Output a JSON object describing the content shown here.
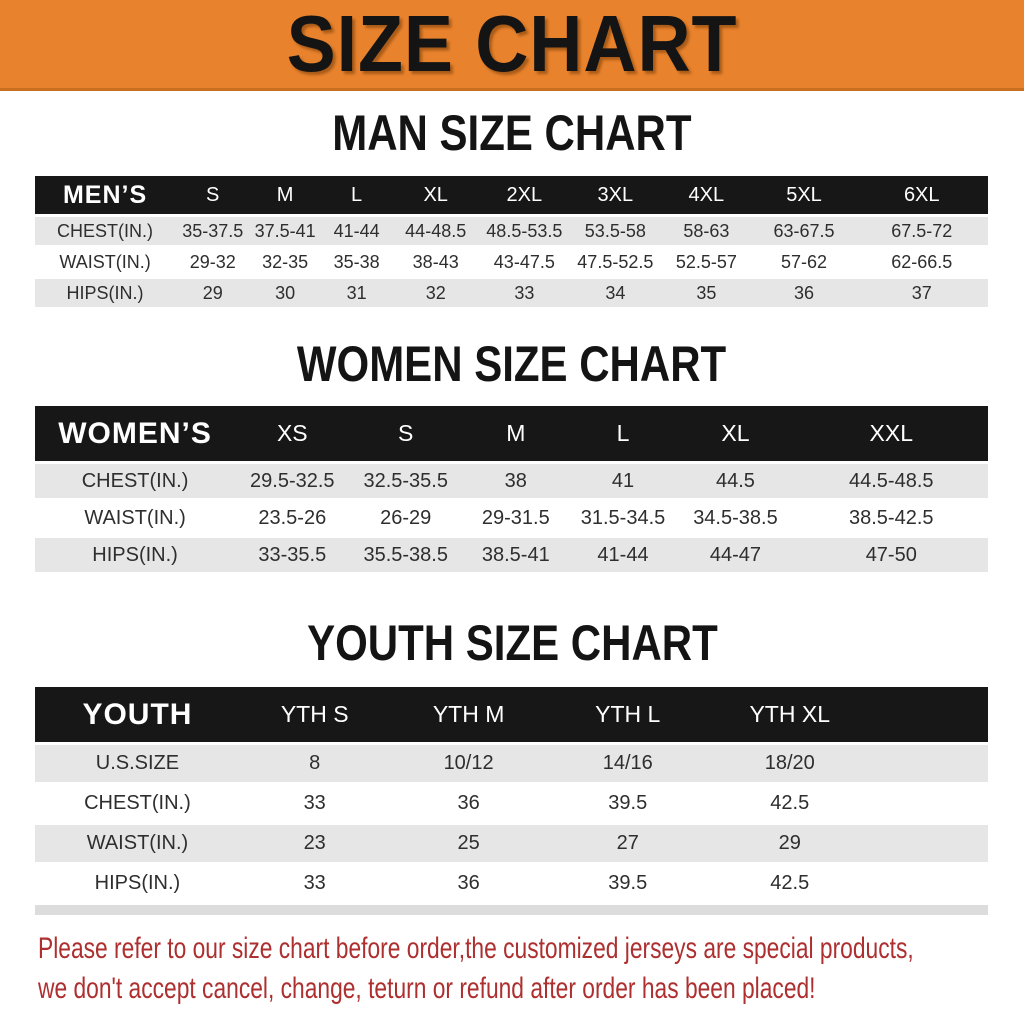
{
  "banner": {
    "title": "SIZE CHART"
  },
  "colors": {
    "banner_bg": "#E8822C",
    "banner_border": "#C76F1E",
    "header_band": "#171717",
    "header_text": "#FFFFFF",
    "row_gray": "#E6E6E6",
    "row_white": "#FFFFFF",
    "body_text": "#2E2E2E",
    "heading_text": "#141414",
    "footer_red": "#AE2F2F"
  },
  "sections": [
    {
      "heading": "MAN SIZE CHART",
      "table": {
        "header": [
          "MEN’S",
          "S",
          "M",
          "L",
          "XL",
          "2XL",
          "3XL",
          "4XL",
          "5XL",
          "6XL"
        ],
        "rows": [
          [
            "CHEST(IN.)",
            "35-37.5",
            "37.5-41",
            "41-44",
            "44-48.5",
            "48.5-53.5",
            "53.5-58",
            "58-63",
            "63-67.5",
            "67.5-72"
          ],
          [
            "WAIST(IN.)",
            "29-32",
            "32-35",
            "35-38",
            "38-43",
            "43-47.5",
            "47.5-52.5",
            "52.5-57",
            "57-62",
            "62-66.5"
          ],
          [
            "HIPS(IN.)",
            "29",
            "30",
            "31",
            "32",
            "33",
            "34",
            "35",
            "36",
            "37"
          ]
        ]
      }
    },
    {
      "heading": "WOMEN SIZE CHART",
      "table": {
        "header": [
          "WOMEN’S",
          "XS",
          "S",
          "M",
          "L",
          "XL",
          "XXL"
        ],
        "rows": [
          [
            "CHEST(IN.)",
            "29.5-32.5",
            "32.5-35.5",
            "38",
            "41",
            "44.5",
            "44.5-48.5"
          ],
          [
            "WAIST(IN.)",
            "23.5-26",
            "26-29",
            "29-31.5",
            "31.5-34.5",
            "34.5-38.5",
            "38.5-42.5"
          ],
          [
            "HIPS(IN.)",
            "33-35.5",
            "35.5-38.5",
            "38.5-41",
            "41-44",
            "44-47",
            "47-50"
          ]
        ]
      }
    },
    {
      "heading": "YOUTH SIZE CHART",
      "table": {
        "header": [
          "YOUTH",
          "YTH S",
          "YTH M",
          "YTH L",
          "YTH XL"
        ],
        "rows": [
          [
            "U.S.SIZE",
            "8",
            "10/12",
            "14/16",
            "18/20"
          ],
          [
            "CHEST(IN.)",
            "33",
            "36",
            "39.5",
            "42.5"
          ],
          [
            "WAIST(IN.)",
            "23",
            "25",
            "27",
            "29"
          ],
          [
            "HIPS(IN.)",
            "33",
            "36",
            "39.5",
            "42.5"
          ]
        ]
      }
    }
  ],
  "footer": {
    "line1": "Please refer to our size chart before order,the customized jerseys are special products,",
    "line2": "we don't accept cancel, change, teturn or refund after order has been placed!"
  }
}
